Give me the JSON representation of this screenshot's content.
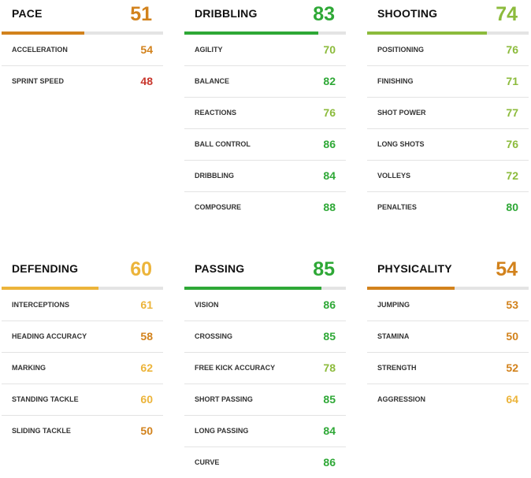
{
  "colors": {
    "high": "#2ea836",
    "good": "#8cbb3c",
    "mid": "#ecb43a",
    "low": "#d2821c",
    "poor": "#c8362c"
  },
  "blocks": [
    {
      "title": "PACE",
      "value": 51,
      "attributes": [
        {
          "label": "ACCELERATION",
          "value": 54
        },
        {
          "label": "SPRINT SPEED",
          "value": 48
        }
      ]
    },
    {
      "title": "DRIBBLING",
      "value": 83,
      "attributes": [
        {
          "label": "AGILITY",
          "value": 70
        },
        {
          "label": "BALANCE",
          "value": 82
        },
        {
          "label": "REACTIONS",
          "value": 76
        },
        {
          "label": "BALL CONTROL",
          "value": 86
        },
        {
          "label": "DRIBBLING",
          "value": 84
        },
        {
          "label": "COMPOSURE",
          "value": 88
        }
      ]
    },
    {
      "title": "SHOOTING",
      "value": 74,
      "attributes": [
        {
          "label": "POSITIONING",
          "value": 76
        },
        {
          "label": "FINISHING",
          "value": 71
        },
        {
          "label": "SHOT POWER",
          "value": 77
        },
        {
          "label": "LONG SHOTS",
          "value": 76
        },
        {
          "label": "VOLLEYS",
          "value": 72
        },
        {
          "label": "PENALTIES",
          "value": 80
        }
      ]
    },
    {
      "title": "DEFENDING",
      "value": 60,
      "attributes": [
        {
          "label": "INTERCEPTIONS",
          "value": 61
        },
        {
          "label": "HEADING ACCURACY",
          "value": 58
        },
        {
          "label": "MARKING",
          "value": 62
        },
        {
          "label": "STANDING TACKLE",
          "value": 60
        },
        {
          "label": "SLIDING TACKLE",
          "value": 50
        }
      ]
    },
    {
      "title": "PASSING",
      "value": 85,
      "attributes": [
        {
          "label": "VISION",
          "value": 86
        },
        {
          "label": "CROSSING",
          "value": 85
        },
        {
          "label": "FREE KICK ACCURACY",
          "value": 78
        },
        {
          "label": "SHORT PASSING",
          "value": 85
        },
        {
          "label": "LONG PASSING",
          "value": 84
        },
        {
          "label": "CURVE",
          "value": 86
        }
      ]
    },
    {
      "title": "PHYSICALITY",
      "value": 54,
      "attributes": [
        {
          "label": "JUMPING",
          "value": 53
        },
        {
          "label": "STAMINA",
          "value": 50
        },
        {
          "label": "STRENGTH",
          "value": 52
        },
        {
          "label": "AGGRESSION",
          "value": 64
        }
      ]
    }
  ]
}
